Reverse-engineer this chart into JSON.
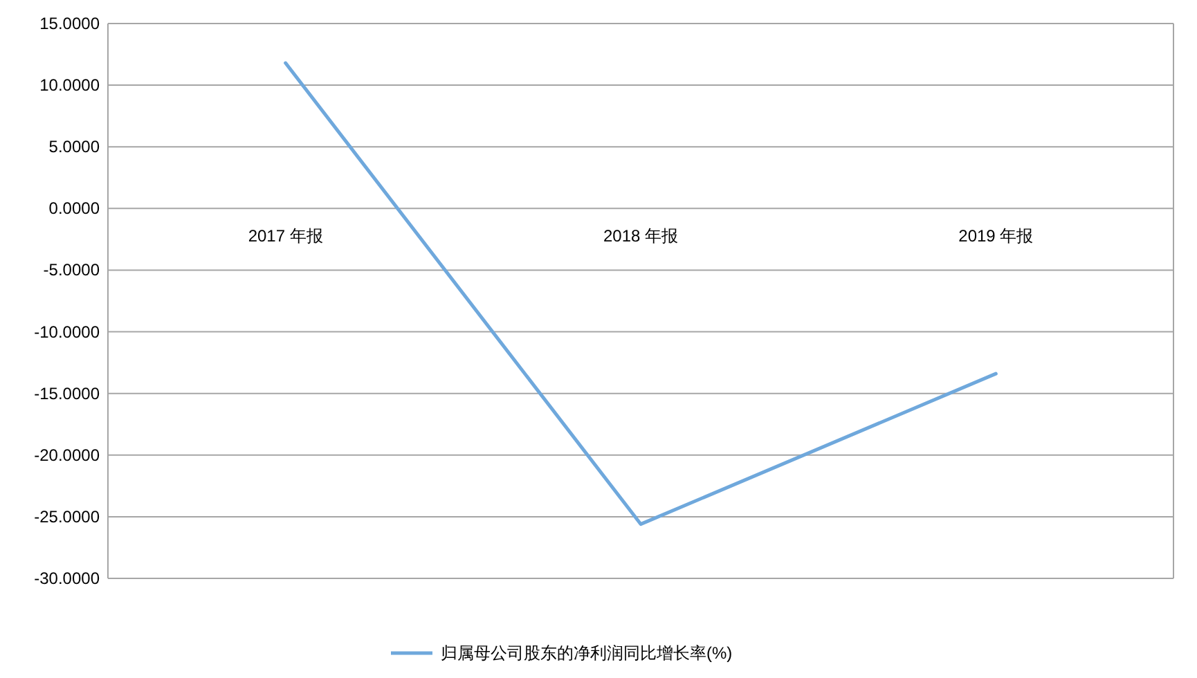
{
  "chart_data": {
    "type": "line",
    "categories": [
      "2017 年报",
      "2018 年报",
      "2019 年报"
    ],
    "series": [
      {
        "name": "归属母公司股东的净利润同比增长率(%)",
        "color": "#6fa8dc",
        "values": [
          11.8,
          -25.6,
          -13.4
        ]
      }
    ],
    "ylim": [
      -30,
      15
    ],
    "yticks": [
      {
        "value": -30,
        "label": "-30.0000"
      },
      {
        "value": -25,
        "label": "-25.0000"
      },
      {
        "value": -20,
        "label": "-20.0000"
      },
      {
        "value": -15,
        "label": "-15.0000"
      },
      {
        "value": -10,
        "label": "-10.0000"
      },
      {
        "value": -5,
        "label": "-5.0000"
      },
      {
        "value": 0,
        "label": "0.0000"
      },
      {
        "value": 5,
        "label": "5.0000"
      },
      {
        "value": 10,
        "label": "10.0000"
      },
      {
        "value": 15,
        "label": "15.0000"
      }
    ],
    "grid": "y",
    "legend": "bottom"
  }
}
